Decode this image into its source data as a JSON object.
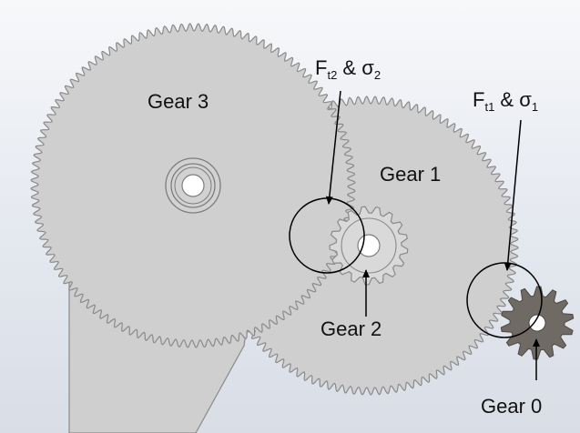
{
  "labels": {
    "gear3": "Gear 3",
    "gear1": "Gear 1",
    "gear2": "Gear 2",
    "gear0": "Gear 0",
    "force2": {
      "F": "F",
      "sub": "t2",
      "amp": "&",
      "sigma": "σ",
      "sigma_sub": "2"
    },
    "force1": {
      "F": "F",
      "sub": "t1",
      "amp": "&",
      "sigma": "σ",
      "sigma_sub": "1"
    }
  },
  "colors": {
    "gear_fill": "#cfcfcf",
    "gear_outline": "#8a8a8a",
    "gear0_fill": "#6f6a64",
    "gear2_fill": "#d9d9d9",
    "circle": "#000000",
    "arrow": "#000000",
    "text": "#111111"
  }
}
